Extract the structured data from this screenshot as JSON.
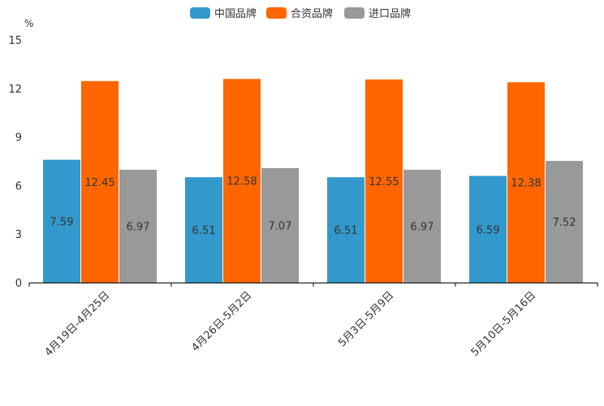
{
  "chart_data": {
    "type": "bar",
    "title": "",
    "xlabel": "",
    "ylabel": "%",
    "ylim": [
      0,
      15
    ],
    "yticks": [
      0,
      3,
      6,
      9,
      12,
      15
    ],
    "grid": false,
    "legend_position": "top-center",
    "categories": [
      "4月19日-4月25日",
      "4月26日-5月2日",
      "5月3日-5月9日",
      "5月10日-5月16日"
    ],
    "series": [
      {
        "name": "中国品牌",
        "color": "#3399cc",
        "values": [
          7.59,
          6.51,
          6.51,
          6.59
        ]
      },
      {
        "name": "合资品牌",
        "color": "#ff6600",
        "values": [
          12.45,
          12.58,
          12.55,
          12.38
        ]
      },
      {
        "name": "进口品牌",
        "color": "#999999",
        "values": [
          6.97,
          7.07,
          6.97,
          7.52
        ]
      }
    ],
    "data_label_color": "#333333"
  }
}
